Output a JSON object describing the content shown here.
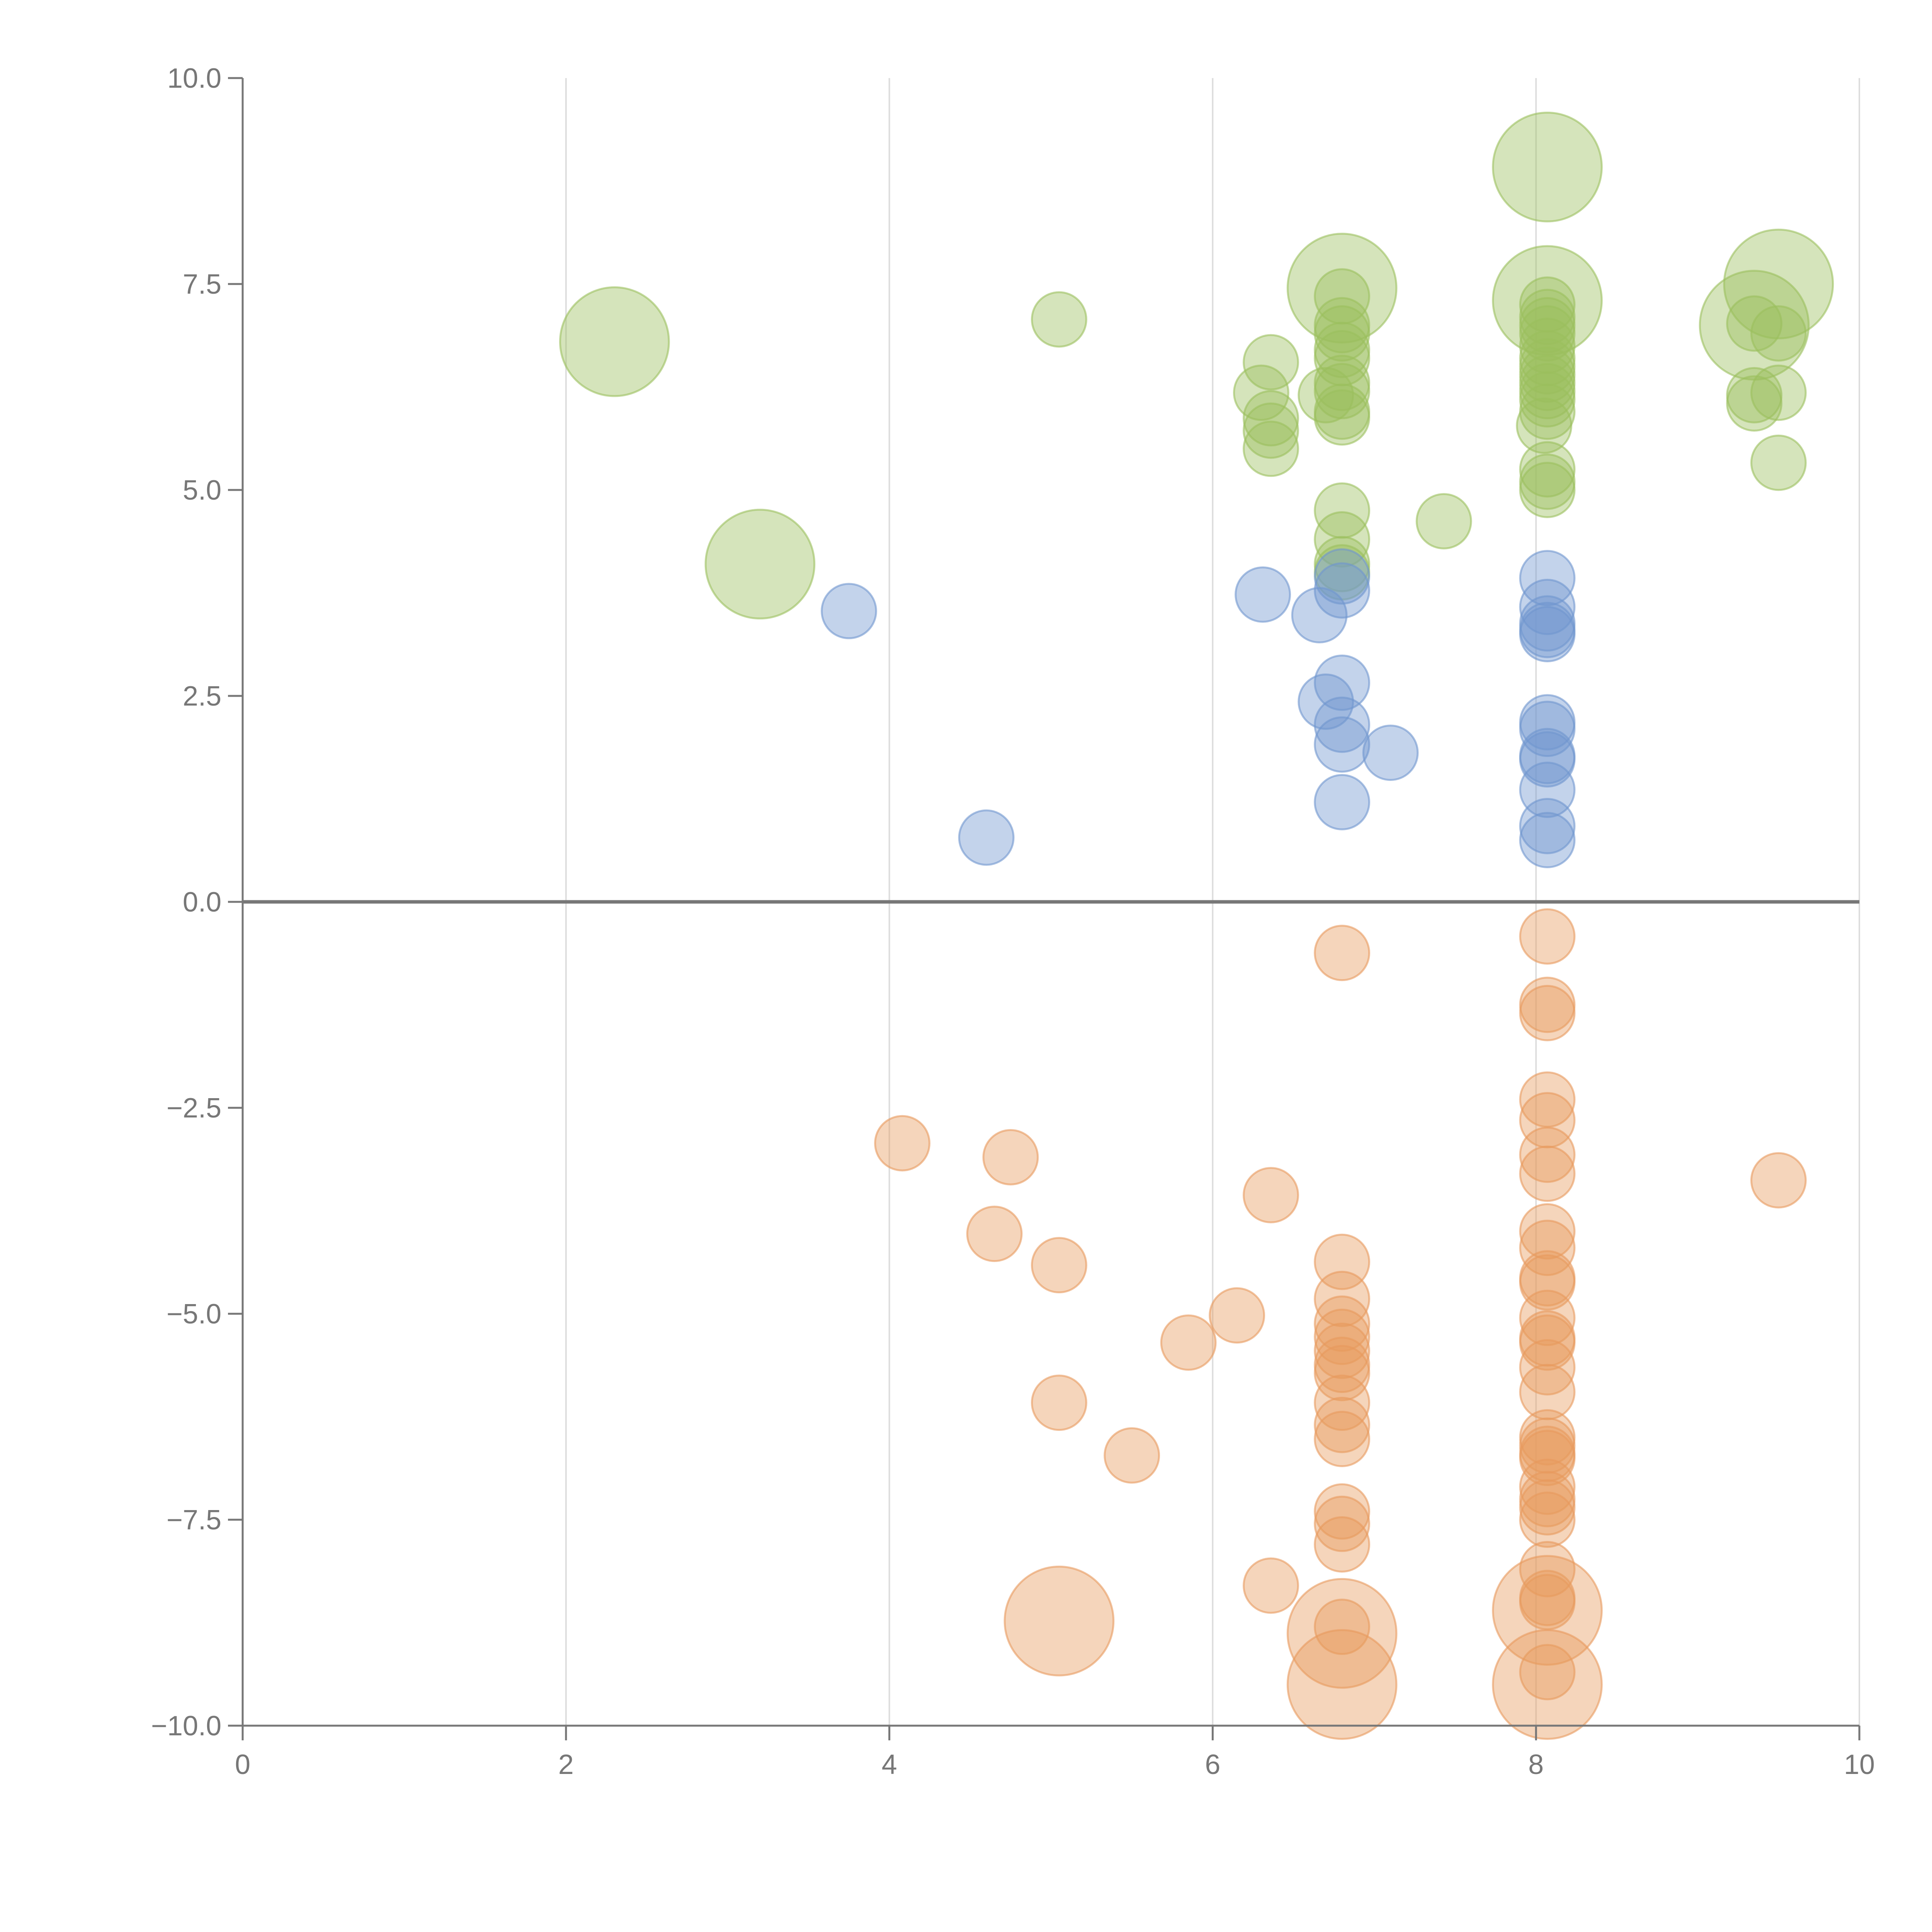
{
  "chart_data": {
    "type": "scatter",
    "title": "",
    "xlabel": "",
    "ylabel": "",
    "xlim": [
      0,
      10
    ],
    "ylim": [
      -10,
      10
    ],
    "x_ticks": [
      0,
      2,
      4,
      6,
      8,
      10
    ],
    "x_tick_labels": [
      "0",
      "2",
      "4",
      "6",
      "8",
      "10"
    ],
    "y_ticks": [
      10,
      7.5,
      5,
      2.5,
      0,
      -2.5,
      -5,
      -7.5,
      -10
    ],
    "y_tick_labels": [
      "10.0",
      "7.5",
      "5.0",
      "2.5",
      "0.0",
      "−2.5",
      "−5.0",
      "−7.5",
      "−10.0"
    ],
    "grid": "vertical",
    "zero_line": true,
    "series": [
      {
        "name": "green",
        "color": "#9bbf5e",
        "points": [
          [
            2.3,
            6.8,
            2.2
          ],
          [
            3.2,
            4.1,
            2.2
          ],
          [
            5.05,
            7.07,
            1.1
          ],
          [
            6.3,
            6.18,
            1.1
          ],
          [
            6.36,
            6.55,
            1.1
          ],
          [
            6.36,
            5.87,
            1.1
          ],
          [
            6.36,
            5.72,
            1.1
          ],
          [
            6.36,
            5.5,
            1.1
          ],
          [
            6.8,
            7.45,
            2.2
          ],
          [
            6.8,
            7.35,
            1.1
          ],
          [
            6.8,
            7.0,
            1.1
          ],
          [
            6.8,
            6.9,
            1.1
          ],
          [
            6.8,
            6.7,
            1.1
          ],
          [
            6.8,
            6.6,
            1.1
          ],
          [
            6.8,
            6.3,
            1.1
          ],
          [
            6.8,
            6.2,
            1.1
          ],
          [
            6.7,
            6.15,
            1.1
          ],
          [
            6.8,
            5.95,
            1.1
          ],
          [
            6.8,
            5.88,
            1.1
          ],
          [
            6.8,
            4.75,
            1.1
          ],
          [
            6.8,
            4.4,
            1.1
          ],
          [
            6.8,
            4.1,
            1.1
          ],
          [
            6.8,
            4.0,
            1.1
          ],
          [
            7.43,
            4.62,
            1.1
          ],
          [
            8.07,
            8.92,
            2.2
          ],
          [
            8.07,
            7.3,
            2.2
          ],
          [
            8.07,
            7.25,
            1.1
          ],
          [
            8.07,
            7.1,
            1.1
          ],
          [
            8.07,
            7.0,
            1.1
          ],
          [
            8.07,
            6.9,
            1.1
          ],
          [
            8.07,
            6.75,
            1.1
          ],
          [
            8.07,
            6.6,
            1.1
          ],
          [
            8.07,
            6.5,
            1.1
          ],
          [
            8.07,
            6.4,
            1.1
          ],
          [
            8.07,
            6.3,
            1.1
          ],
          [
            8.07,
            6.2,
            1.1
          ],
          [
            8.07,
            6.1,
            1.1
          ],
          [
            8.07,
            5.95,
            1.1
          ],
          [
            8.05,
            5.78,
            1.1
          ],
          [
            8.07,
            5.25,
            1.1
          ],
          [
            8.07,
            5.1,
            1.1
          ],
          [
            8.07,
            5.0,
            1.1
          ],
          [
            9.35,
            7.0,
            2.2
          ],
          [
            9.35,
            7.02,
            1.1
          ],
          [
            9.5,
            7.5,
            2.2
          ],
          [
            9.5,
            6.9,
            1.1
          ],
          [
            9.35,
            6.15,
            1.1
          ],
          [
            9.35,
            6.05,
            1.1
          ],
          [
            9.5,
            6.18,
            1.1
          ],
          [
            9.5,
            5.33,
            1.1
          ]
        ]
      },
      {
        "name": "blue",
        "color": "#6f96cf",
        "points": [
          [
            3.75,
            3.53,
            1.1
          ],
          [
            4.6,
            0.78,
            1.1
          ],
          [
            6.31,
            3.73,
            1.1
          ],
          [
            6.66,
            3.48,
            1.1
          ],
          [
            6.8,
            3.95,
            1.1
          ],
          [
            6.8,
            3.78,
            1.1
          ],
          [
            6.8,
            2.66,
            1.1
          ],
          [
            6.7,
            2.43,
            1.1
          ],
          [
            6.8,
            2.15,
            1.1
          ],
          [
            6.8,
            1.91,
            1.1
          ],
          [
            7.1,
            1.81,
            1.1
          ],
          [
            6.8,
            1.21,
            1.1
          ],
          [
            8.07,
            3.93,
            1.1
          ],
          [
            8.07,
            3.58,
            1.1
          ],
          [
            8.07,
            3.38,
            1.1
          ],
          [
            8.07,
            3.3,
            1.1
          ],
          [
            8.07,
            3.25,
            1.1
          ],
          [
            8.07,
            2.18,
            1.1
          ],
          [
            8.07,
            2.1,
            1.1
          ],
          [
            8.07,
            1.77,
            1.1
          ],
          [
            8.07,
            1.73,
            1.1
          ],
          [
            8.07,
            1.36,
            1.1
          ],
          [
            8.07,
            0.92,
            1.1
          ],
          [
            8.07,
            0.75,
            1.1
          ]
        ]
      },
      {
        "name": "orange",
        "color": "#e89a5e",
        "points": [
          [
            6.8,
            -0.62,
            1.1
          ],
          [
            8.07,
            -0.42,
            1.1
          ],
          [
            8.07,
            -1.25,
            1.1
          ],
          [
            8.07,
            -1.35,
            1.1
          ],
          [
            4.08,
            -2.93,
            1.1
          ],
          [
            4.75,
            -3.1,
            1.1
          ],
          [
            4.65,
            -4.03,
            1.1
          ],
          [
            5.05,
            -4.41,
            1.1
          ],
          [
            6.36,
            -3.56,
            1.1
          ],
          [
            9.5,
            -3.38,
            1.1
          ],
          [
            8.07,
            -2.4,
            1.1
          ],
          [
            8.07,
            -2.65,
            1.1
          ],
          [
            8.07,
            -3.07,
            1.1
          ],
          [
            8.07,
            -3.3,
            1.1
          ],
          [
            8.07,
            -4.0,
            1.1
          ],
          [
            8.07,
            -4.2,
            1.1
          ],
          [
            8.07,
            -4.57,
            1.1
          ],
          [
            8.07,
            -4.62,
            1.1
          ],
          [
            8.07,
            -5.05,
            1.1
          ],
          [
            8.07,
            -5.3,
            1.1
          ],
          [
            8.07,
            -5.35,
            1.1
          ],
          [
            8.07,
            -5.65,
            1.1
          ],
          [
            8.07,
            -5.95,
            1.1
          ],
          [
            8.07,
            -6.5,
            1.1
          ],
          [
            8.07,
            -6.6,
            1.1
          ],
          [
            8.07,
            -6.7,
            1.1
          ],
          [
            8.07,
            -6.75,
            1.1
          ],
          [
            8.07,
            -7.1,
            1.1
          ],
          [
            8.07,
            -7.25,
            1.1
          ],
          [
            8.07,
            -7.35,
            1.1
          ],
          [
            8.07,
            -7.5,
            1.1
          ],
          [
            8.07,
            -8.1,
            1.1
          ],
          [
            8.07,
            -8.45,
            1.1
          ],
          [
            8.07,
            -8.5,
            1.1
          ],
          [
            8.07,
            -8.6,
            2.2
          ],
          [
            8.07,
            -9.35,
            1.1
          ],
          [
            8.07,
            -9.5,
            2.2
          ],
          [
            6.8,
            -4.37,
            1.1
          ],
          [
            6.8,
            -4.82,
            1.1
          ],
          [
            6.8,
            -5.12,
            1.1
          ],
          [
            6.8,
            -5.28,
            1.1
          ],
          [
            6.8,
            -5.45,
            1.1
          ],
          [
            6.8,
            -5.62,
            1.1
          ],
          [
            6.8,
            -5.72,
            1.1
          ],
          [
            6.8,
            -6.08,
            1.1
          ],
          [
            6.8,
            -6.35,
            1.1
          ],
          [
            6.8,
            -6.52,
            1.1
          ],
          [
            6.8,
            -7.4,
            1.1
          ],
          [
            6.8,
            -7.55,
            1.1
          ],
          [
            6.8,
            -7.8,
            1.1
          ],
          [
            6.8,
            -8.8,
            1.1
          ],
          [
            6.8,
            -8.88,
            2.2
          ],
          [
            6.8,
            -9.5,
            2.2
          ],
          [
            6.15,
            -5.02,
            1.1
          ],
          [
            5.85,
            -5.35,
            1.1
          ],
          [
            5.05,
            -6.08,
            1.1
          ],
          [
            5.5,
            -6.72,
            1.1
          ],
          [
            6.36,
            -8.3,
            1.1
          ],
          [
            5.05,
            -8.73,
            2.2
          ]
        ]
      }
    ]
  }
}
